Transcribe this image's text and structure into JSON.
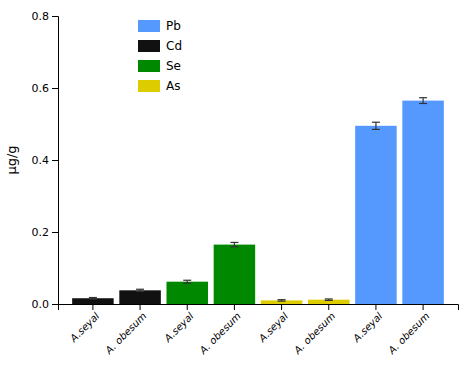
{
  "chart_data": {
    "type": "bar",
    "y_label": "μg/g",
    "categories": [
      "A.seyal",
      "A. obesum",
      "A.seyal",
      "A. obesum",
      "A.seyal",
      "A. obesum",
      "A.seyal",
      "A. obesum"
    ],
    "series": [
      {
        "name": "Pb",
        "color": "#5599ff",
        "values": [
          null,
          null,
          null,
          null,
          null,
          null,
          0.495,
          0.565
        ],
        "errors": [
          null,
          null,
          null,
          null,
          null,
          null,
          0.01,
          0.008
        ]
      },
      {
        "name": "Cd",
        "color": "#111111",
        "values": [
          0.016,
          0.038,
          null,
          null,
          null,
          null,
          null,
          null
        ],
        "errors": [
          0.002,
          0.003,
          null,
          null,
          null,
          null,
          null,
          null
        ]
      },
      {
        "name": "Se",
        "color": "#008800",
        "values": [
          null,
          null,
          0.062,
          0.165,
          null,
          null,
          null,
          null
        ],
        "errors": [
          null,
          null,
          0.004,
          0.006,
          null,
          null,
          null,
          null
        ]
      },
      {
        "name": "As",
        "color": "#ddcc00",
        "values": [
          null,
          null,
          null,
          null,
          0.01,
          0.012,
          null,
          null
        ],
        "errors": [
          null,
          null,
          null,
          null,
          0.002,
          0.002,
          null,
          null
        ]
      }
    ],
    "ylim": [
      0,
      0.8
    ],
    "yticks": [
      {
        "value": 0,
        "label": "0.0"
      },
      0.2,
      0.4,
      0.6,
      0.8
    ],
    "legend": "top-left",
    "grid": false
  }
}
